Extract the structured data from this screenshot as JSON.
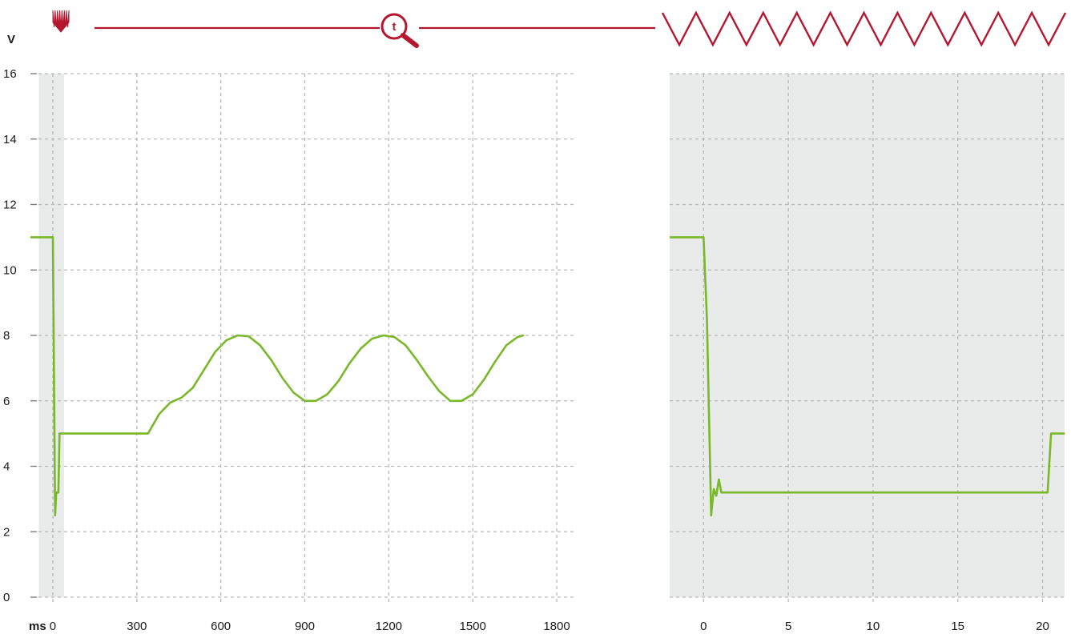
{
  "colors": {
    "accent": "#b5172f",
    "trace": "#78b829",
    "shade": "#e9eaea",
    "grid": "#b9b9b9"
  },
  "header": {
    "left_icon": "burst-pulse-icon",
    "center_icon": "time-zoom-magnifier-icon",
    "center_letter": "t",
    "right_icon": "zigzag-wave-icon"
  },
  "chart_data": [
    {
      "type": "line",
      "title": "",
      "xlabel": "ms",
      "ylabel": "V",
      "xlim": [
        -80,
        1860
      ],
      "ylim": [
        0,
        16
      ],
      "x_ticks": [
        0,
        300,
        600,
        900,
        1200,
        1500,
        1800
      ],
      "y_ticks": [
        0,
        2,
        4,
        6,
        8,
        10,
        12,
        14,
        16
      ],
      "grid": true,
      "shaded_x_range": [
        -50,
        40
      ],
      "series": [
        {
          "x": [
            -130,
            0,
            8,
            12,
            20,
            24,
            35,
            100,
            200,
            300,
            340,
            380,
            420,
            460,
            500,
            540,
            580,
            620,
            660,
            700,
            740,
            780,
            820,
            860,
            900,
            940,
            980,
            1020,
            1060,
            1100,
            1140,
            1180,
            1220,
            1260,
            1300,
            1340,
            1380,
            1420,
            1460,
            1500,
            1540,
            1580,
            1620,
            1660,
            1680
          ],
          "y": [
            11,
            11,
            2.5,
            3.2,
            3.2,
            5,
            5,
            5,
            5,
            5,
            5,
            5.6,
            5.95,
            6.1,
            6.4,
            6.95,
            7.5,
            7.85,
            8.0,
            7.97,
            7.7,
            7.25,
            6.7,
            6.25,
            6.0,
            6.0,
            6.2,
            6.6,
            7.15,
            7.6,
            7.9,
            8.0,
            7.95,
            7.7,
            7.25,
            6.75,
            6.3,
            6.0,
            6.0,
            6.2,
            6.65,
            7.2,
            7.7,
            7.95,
            8.0
          ]
        }
      ]
    },
    {
      "type": "line",
      "title": "",
      "xlabel": "",
      "ylabel": "",
      "xlim": [
        -2,
        21.3
      ],
      "ylim": [
        0,
        16
      ],
      "x_ticks": [
        0,
        5,
        10,
        15,
        20
      ],
      "y_ticks": [
        0,
        2,
        4,
        6,
        8,
        10,
        12,
        14,
        16
      ],
      "grid": true,
      "shaded_x_range": [
        -2,
        21.3
      ],
      "series": [
        {
          "x": [
            -3,
            0,
            0.2,
            0.45,
            0.6,
            0.75,
            0.9,
            1.05,
            1.25,
            5,
            10,
            15,
            20,
            20.3,
            20.5,
            21.5
          ],
          "y": [
            11,
            11,
            8.5,
            2.5,
            3.3,
            3.1,
            3.6,
            3.2,
            3.2,
            3.2,
            3.2,
            3.2,
            3.2,
            3.2,
            5,
            5
          ]
        }
      ]
    }
  ]
}
